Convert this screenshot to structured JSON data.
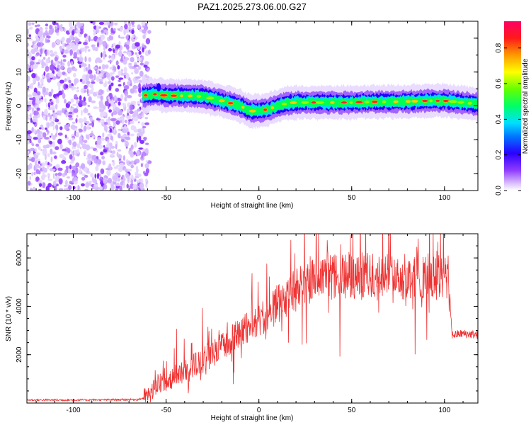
{
  "chart_data": [
    {
      "type": "heatmap",
      "title": "PAZ1.2025.273.06.00.G27",
      "xlabel": "Height of straight line (km)",
      "ylabel": "Frequency (Hz)",
      "xlim": [
        -125,
        118
      ],
      "ylim": [
        -25,
        25
      ],
      "xticks": [
        "-100",
        "-50",
        "0",
        "50",
        "100"
      ],
      "yticks": [
        "-20",
        "-10",
        "0",
        "10",
        "20"
      ],
      "noise_region_x": [
        -125,
        -63
      ],
      "signal_track": {
        "x": [
          -63,
          -55,
          -50,
          -40,
          -30,
          -20,
          -10,
          -5,
          0,
          5,
          10,
          15,
          20,
          30,
          40,
          50,
          60,
          70,
          80,
          90,
          100,
          110,
          118
        ],
        "freq": [
          3,
          3.5,
          3,
          3,
          2.8,
          1.5,
          0,
          -1.5,
          -1.5,
          -1,
          0,
          0.8,
          1,
          1,
          1,
          1,
          1.2,
          1.2,
          1.3,
          1.5,
          1.5,
          1,
          0.5
        ]
      },
      "colorbar": {
        "label": "Normalized spectral amplitude",
        "ticks": [
          "0.0",
          "0.2",
          "0.4",
          "0.6",
          "0.8"
        ],
        "range": [
          0,
          0.95
        ]
      }
    },
    {
      "type": "line",
      "xlabel": "Height of straight line (km)",
      "ylabel": "SNR (10 * v/v)",
      "xlim": [
        -125,
        118
      ],
      "ylim": [
        0,
        7000
      ],
      "xticks": [
        "-100",
        "-50",
        "0",
        "50",
        "100"
      ],
      "yticks": [
        "2000",
        "4000",
        "6000"
      ],
      "series": [
        {
          "name": "SNR",
          "color": "#ee3333",
          "x": [
            -125,
            -100,
            -80,
            -65,
            -60,
            -57,
            -55,
            -50,
            -45,
            -40,
            -35,
            -30,
            -25,
            -20,
            -15,
            -10,
            -5,
            0,
            5,
            10,
            15,
            20,
            25,
            30,
            35,
            40,
            45,
            50,
            55,
            60,
            65,
            70,
            75,
            80,
            85,
            90,
            95,
            100,
            102,
            103,
            104,
            110,
            118
          ],
          "values": [
            120,
            120,
            130,
            140,
            250,
            500,
            700,
            900,
            1100,
            1300,
            1500,
            1750,
            2000,
            2200,
            2500,
            2800,
            3100,
            3300,
            3600,
            4000,
            4300,
            4600,
            4900,
            5000,
            5000,
            5100,
            5150,
            5200,
            5200,
            5200,
            5250,
            5200,
            5150,
            5100,
            5200,
            5150,
            5100,
            5100,
            5050,
            4200,
            2800,
            2850,
            2800
          ]
        }
      ]
    }
  ]
}
